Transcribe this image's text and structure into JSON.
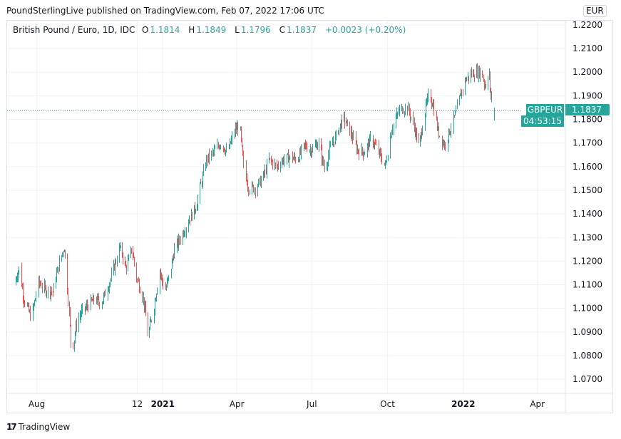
{
  "header": {
    "published": "PoundSterlingLive published on TradingView.com, Feb 07, 2022 17:06 UTC"
  },
  "legend": {
    "symbol": "British Pound / Euro, 1D, IDC",
    "o_label": "O",
    "open": "1.1814",
    "h_label": "H",
    "high": "1.1849",
    "l_label": "L",
    "low": "1.1796",
    "c_label": "C",
    "close": "1.1837",
    "change": "+0.0023 (+0.20%)"
  },
  "price_axis": {
    "currency": "EUR",
    "last_symbol": "GBPEUR",
    "last_price": "1.1837",
    "countdown": "04:53:15"
  },
  "footer": {
    "logo_mark": "17",
    "logo_text": "TradingView"
  },
  "colors": {
    "up": "#26a69a",
    "down": "#ef5350",
    "grid": "#f0f3fa"
  },
  "chart_data": {
    "type": "candlestick",
    "title": "British Pound / Euro, 1D, IDC",
    "ylim": [
      1.064,
      1.2221
    ],
    "y_ticks": [
      "1.0700",
      "1.0800",
      "1.0900",
      "1.1000",
      "1.1100",
      "1.1200",
      "1.1300",
      "1.1400",
      "1.1500",
      "1.1600",
      "1.1700",
      "1.1800",
      "1.1900",
      "1.2000",
      "1.2100",
      "1.2200"
    ],
    "x_range": [
      "2020-06-26",
      "2022-05-05"
    ],
    "x_ticks": [
      {
        "label": "Aug",
        "date": "2020-08-01",
        "bold": false
      },
      {
        "label": "12",
        "date": "2020-12-01",
        "bold": false
      },
      {
        "label": "2021",
        "date": "2021-01-01",
        "bold": true
      },
      {
        "label": "Apr",
        "date": "2021-04-01",
        "bold": false
      },
      {
        "label": "Jul",
        "date": "2021-07-01",
        "bold": false
      },
      {
        "label": "Oct",
        "date": "2021-10-01",
        "bold": false
      },
      {
        "label": "2022",
        "date": "2022-01-01",
        "bold": true
      },
      {
        "label": "Apr",
        "date": "2022-04-01",
        "bold": false
      }
    ],
    "approx_closes": [
      [
        "2020-07-04",
        1.11
      ],
      [
        "2020-07-10",
        1.117
      ],
      [
        "2020-07-16",
        1.104
      ],
      [
        "2020-07-25",
        1.096
      ],
      [
        "2020-08-03",
        1.111
      ],
      [
        "2020-08-11",
        1.108
      ],
      [
        "2020-08-20",
        1.107
      ],
      [
        "2020-08-28",
        1.119
      ],
      [
        "2020-09-03",
        1.126
      ],
      [
        "2020-09-08",
        1.104
      ],
      [
        "2020-09-12",
        1.08
      ],
      [
        "2020-09-17",
        1.092
      ],
      [
        "2020-09-23",
        1.098
      ],
      [
        "2020-10-01",
        1.101
      ],
      [
        "2020-10-10",
        1.104
      ],
      [
        "2020-10-18",
        1.102
      ],
      [
        "2020-10-27",
        1.11
      ],
      [
        "2020-11-04",
        1.119
      ],
      [
        "2020-11-10",
        1.126
      ],
      [
        "2020-11-17",
        1.117
      ],
      [
        "2020-11-24",
        1.125
      ],
      [
        "2020-11-30",
        1.113
      ],
      [
        "2020-12-08",
        1.104
      ],
      [
        "2020-12-14",
        1.089
      ],
      [
        "2020-12-21",
        1.101
      ],
      [
        "2020-12-28",
        1.116
      ],
      [
        "2021-01-03",
        1.107
      ],
      [
        "2021-01-09",
        1.114
      ],
      [
        "2021-01-15",
        1.125
      ],
      [
        "2021-01-24",
        1.131
      ],
      [
        "2021-02-01",
        1.137
      ],
      [
        "2021-02-10",
        1.143
      ],
      [
        "2021-02-17",
        1.154
      ],
      [
        "2021-02-23",
        1.163
      ],
      [
        "2021-03-03",
        1.166
      ],
      [
        "2021-03-12",
        1.17
      ],
      [
        "2021-03-20",
        1.166
      ],
      [
        "2021-03-29",
        1.175
      ],
      [
        "2021-04-04",
        1.178
      ],
      [
        "2021-04-09",
        1.16
      ],
      [
        "2021-04-15",
        1.151
      ],
      [
        "2021-04-23",
        1.151
      ],
      [
        "2021-05-02",
        1.155
      ],
      [
        "2021-05-10",
        1.163
      ],
      [
        "2021-05-19",
        1.16
      ],
      [
        "2021-05-27",
        1.163
      ],
      [
        "2021-06-05",
        1.164
      ],
      [
        "2021-06-13",
        1.163
      ],
      [
        "2021-06-22",
        1.169
      ],
      [
        "2021-06-30",
        1.167
      ],
      [
        "2021-07-09",
        1.17
      ],
      [
        "2021-07-17",
        1.158
      ],
      [
        "2021-07-22",
        1.167
      ],
      [
        "2021-07-30",
        1.173
      ],
      [
        "2021-08-08",
        1.181
      ],
      [
        "2021-08-16",
        1.175
      ],
      [
        "2021-08-25",
        1.167
      ],
      [
        "2021-09-02",
        1.166
      ],
      [
        "2021-09-11",
        1.172
      ],
      [
        "2021-09-19",
        1.167
      ],
      [
        "2021-09-28",
        1.16
      ],
      [
        "2021-10-06",
        1.176
      ],
      [
        "2021-10-15",
        1.184
      ],
      [
        "2021-10-25",
        1.185
      ],
      [
        "2021-11-01",
        1.178
      ],
      [
        "2021-11-08",
        1.169
      ],
      [
        "2021-11-14",
        1.182
      ],
      [
        "2021-11-20",
        1.191
      ],
      [
        "2021-11-25",
        1.186
      ],
      [
        "2021-12-01",
        1.175
      ],
      [
        "2021-12-09",
        1.169
      ],
      [
        "2021-12-15",
        1.175
      ],
      [
        "2021-12-22",
        1.182
      ],
      [
        "2021-12-29",
        1.191
      ],
      [
        "2022-01-04",
        1.197
      ],
      [
        "2022-01-10",
        1.199
      ],
      [
        "2022-01-16",
        1.2
      ],
      [
        "2022-01-23",
        1.2
      ],
      [
        "2022-01-27",
        1.194
      ],
      [
        "2022-02-01",
        1.2
      ],
      [
        "2022-02-02",
        1.191
      ],
      [
        "2022-02-07",
        1.1837
      ]
    ],
    "last_candle": {
      "date": "2022-02-07",
      "open": 1.1814,
      "high": 1.1849,
      "low": 1.1796,
      "close": 1.1837
    }
  }
}
